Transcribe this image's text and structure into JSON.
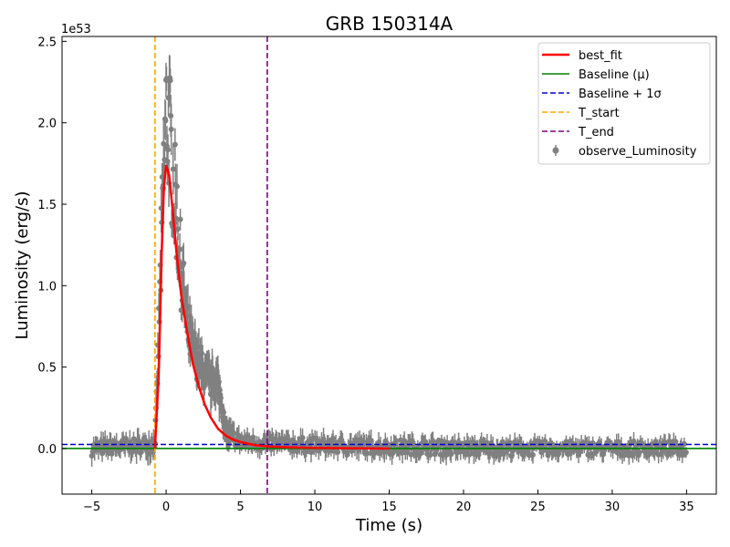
{
  "chart_data": {
    "type": "scatter",
    "title": "GRB 150314A",
    "xlabel": "Time (s)",
    "ylabel": "Luminosity (erg/s)",
    "y_multiplier_label": "1e53",
    "xlim": [
      -7,
      37
    ],
    "ylim": [
      -0.28,
      2.53
    ],
    "x_ticks": [
      -5,
      0,
      5,
      10,
      15,
      20,
      25,
      30,
      35
    ],
    "x_tick_labels": [
      "−5",
      "0",
      "5",
      "10",
      "15",
      "20",
      "25",
      "30",
      "35"
    ],
    "y_ticks": [
      0.0,
      0.5,
      1.0,
      1.5,
      2.0,
      2.5
    ],
    "y_tick_labels": [
      "0.0",
      "0.5",
      "1.0",
      "1.5",
      "2.0",
      "2.5"
    ],
    "grid": false,
    "legend_position": "top-right",
    "colors": {
      "best_fit": "#ff0000",
      "baseline": "#008000",
      "baseline_sigma": "#0000cd",
      "t_start": "#ffa500",
      "t_end": "#800080",
      "observed": "#808080"
    },
    "legend": [
      {
        "label": "best_fit",
        "style": "solid",
        "color": "#ff0000"
      },
      {
        "label": "Baseline (μ)",
        "style": "solid",
        "color": "#008000"
      },
      {
        "label": "Baseline + 1σ",
        "style": "dashed",
        "color": "#0000cd"
      },
      {
        "label": "T_start",
        "style": "dashed",
        "color": "#ffa500"
      },
      {
        "label": "T_end",
        "style": "dashed",
        "color": "#800080"
      },
      {
        "label": "observe_Luminosity",
        "style": "errorbar",
        "color": "#808080"
      }
    ],
    "baseline_mu": 0.0,
    "baseline_plus_sigma": 0.025,
    "t_start": -0.75,
    "t_end": 6.8,
    "best_fit_curve": {
      "x": [
        -0.75,
        -0.5,
        -0.3,
        -0.15,
        0.0,
        0.2,
        0.4,
        0.7,
        1.0,
        1.4,
        1.8,
        2.2,
        2.6,
        3.0,
        3.5,
        4.0,
        4.5,
        5.0,
        5.5,
        6.0,
        7.0,
        8.0,
        10.0,
        12.0,
        15.0
      ],
      "y": [
        0.0,
        0.45,
        1.2,
        1.6,
        1.74,
        1.68,
        1.5,
        1.2,
        0.95,
        0.72,
        0.52,
        0.38,
        0.27,
        0.19,
        0.12,
        0.08,
        0.055,
        0.04,
        0.03,
        0.02,
        0.012,
        0.008,
        0.004,
        0.002,
        0.0
      ]
    },
    "series": [
      {
        "name": "observe_Luminosity",
        "envelope": [
          {
            "x": -5.0,
            "y": 0.0,
            "err": 0.05
          },
          {
            "x": -1.0,
            "y": 0.02,
            "err": 0.06
          },
          {
            "x": -0.75,
            "y": 0.05,
            "err": 0.05
          },
          {
            "x": -0.6,
            "y": 0.4,
            "err": 0.08
          },
          {
            "x": -0.4,
            "y": 1.0,
            "err": 0.1
          },
          {
            "x": -0.2,
            "y": 1.6,
            "err": 0.12
          },
          {
            "x": 0.0,
            "y": 2.05,
            "err": 0.12
          },
          {
            "x": 0.2,
            "y": 2.0,
            "err": 0.12
          },
          {
            "x": 0.4,
            "y": 1.7,
            "err": 0.12
          },
          {
            "x": 0.7,
            "y": 1.45,
            "err": 0.1
          },
          {
            "x": 1.0,
            "y": 1.1,
            "err": 0.1
          },
          {
            "x": 1.4,
            "y": 0.75,
            "err": 0.1
          },
          {
            "x": 1.8,
            "y": 0.6,
            "err": 0.1
          },
          {
            "x": 2.2,
            "y": 0.52,
            "err": 0.1
          },
          {
            "x": 2.6,
            "y": 0.45,
            "err": 0.1
          },
          {
            "x": 3.0,
            "y": 0.4,
            "err": 0.1
          },
          {
            "x": 3.4,
            "y": 0.42,
            "err": 0.1
          },
          {
            "x": 3.7,
            "y": 0.3,
            "err": 0.1
          },
          {
            "x": 4.0,
            "y": 0.1,
            "err": 0.07
          },
          {
            "x": 5.0,
            "y": 0.04,
            "err": 0.05
          },
          {
            "x": 7.0,
            "y": 0.03,
            "err": 0.05
          },
          {
            "x": 10.0,
            "y": 0.02,
            "err": 0.05
          },
          {
            "x": 15.0,
            "y": 0.01,
            "err": 0.05
          },
          {
            "x": 20.0,
            "y": 0.0,
            "err": 0.05
          },
          {
            "x": 25.0,
            "y": 0.0,
            "err": 0.04
          },
          {
            "x": 30.0,
            "y": 0.0,
            "err": 0.04
          },
          {
            "x": 35.0,
            "y": 0.0,
            "err": 0.04
          }
        ]
      }
    ]
  }
}
